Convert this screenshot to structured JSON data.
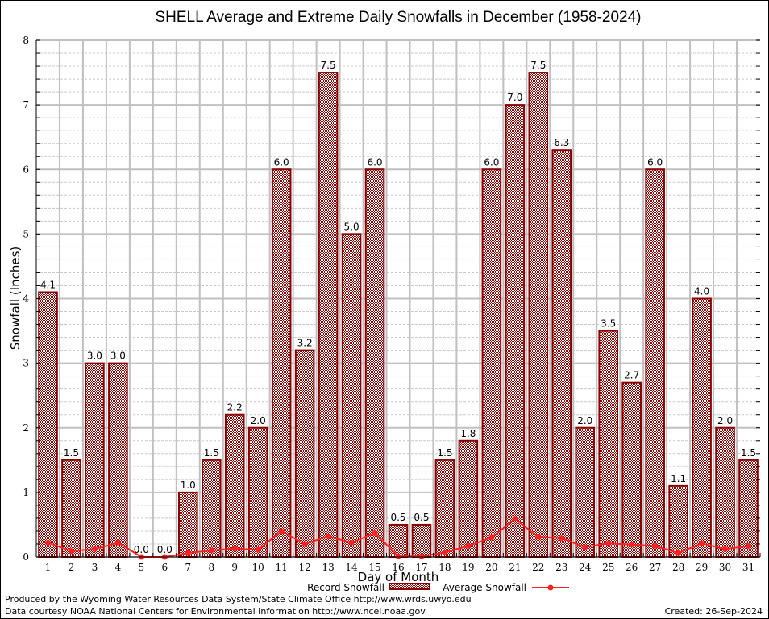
{
  "chart_data": {
    "type": "bar",
    "title": "SHELL Average and Extreme Daily Snowfalls in December (1958-2024)",
    "xlabel": "Day of Month",
    "ylabel": "Snowfall (Inches)",
    "ylim": [
      0,
      8
    ],
    "yticks": [
      "0",
      "1",
      "2",
      "3",
      "4",
      "5",
      "6",
      "7",
      "8"
    ],
    "categories": [
      "1",
      "2",
      "3",
      "4",
      "5",
      "6",
      "7",
      "8",
      "9",
      "10",
      "11",
      "12",
      "13",
      "14",
      "15",
      "16",
      "17",
      "18",
      "19",
      "20",
      "21",
      "22",
      "23",
      "24",
      "25",
      "26",
      "27",
      "28",
      "29",
      "30",
      "31"
    ],
    "grid": true,
    "legend_position": "bottom",
    "series": [
      {
        "name": "Record Snowfall",
        "type": "bar",
        "color": "#8b0000",
        "values": [
          4.1,
          1.5,
          3.0,
          3.0,
          0.0,
          0.0,
          1.0,
          1.5,
          2.2,
          2.0,
          6.0,
          3.2,
          7.5,
          5.0,
          6.0,
          0.5,
          0.5,
          1.5,
          1.8,
          6.0,
          7.0,
          7.5,
          6.3,
          2.0,
          3.5,
          2.7,
          6.0,
          1.1,
          4.0,
          2.0,
          1.5
        ],
        "labels": [
          "4.1",
          "1.5",
          "3.0",
          "3.0",
          "0.0",
          "0.0",
          "1.0",
          "1.5",
          "2.2",
          "2.0",
          "6.0",
          "3.2",
          "7.5",
          "5.0",
          "6.0",
          "0.5",
          "0.5",
          "1.5",
          "1.8",
          "6.0",
          "7.0",
          "7.5",
          "6.3",
          "2.0",
          "3.5",
          "2.7",
          "6.0",
          "1.1",
          "4.0",
          "2.0",
          "1.5"
        ]
      },
      {
        "name": "Average Snowfall",
        "type": "line",
        "color": "#ff2020",
        "values": [
          0.22,
          0.09,
          0.12,
          0.22,
          0.0,
          0.0,
          0.06,
          0.1,
          0.13,
          0.11,
          0.4,
          0.2,
          0.32,
          0.22,
          0.37,
          0.01,
          0.01,
          0.07,
          0.17,
          0.3,
          0.59,
          0.31,
          0.29,
          0.15,
          0.21,
          0.19,
          0.17,
          0.06,
          0.21,
          0.12,
          0.17
        ]
      }
    ]
  },
  "footer": {
    "credit_line1": "Produced by the Wyoming Water Resources Data System/State Climate Office http://www.wrds.uwyo.edu",
    "credit_line2": "Data courtesy NOAA National Centers for Environmental Information http://www.ncei.noaa.gov",
    "created": "Created:  26-Sep-2024"
  }
}
